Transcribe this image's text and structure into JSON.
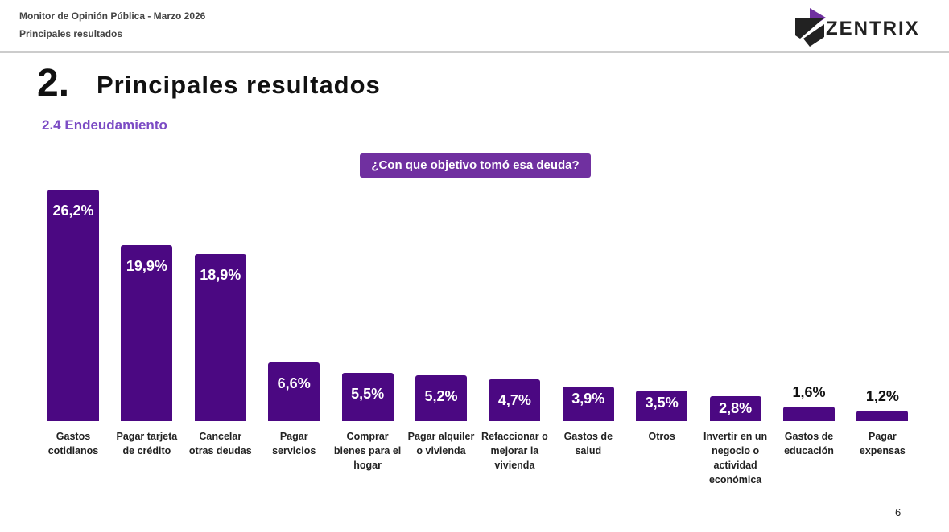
{
  "header": {
    "report": "Monitor de Opinión Pública - Marzo 2026",
    "section": "Principales resultados",
    "logo": "ZENTRIX"
  },
  "heading": {
    "number": "2.",
    "title": "Principales resultados",
    "subtitle": "2.4 Endeudamiento"
  },
  "page_number": 6,
  "chart_data": {
    "type": "bar",
    "title": "¿Con que objetivo tomó esa deuda?",
    "categories": [
      "Gastos cotidianos",
      "Pagar tarjeta de crédito",
      "Cancelar otras deudas",
      "Pagar servicios",
      "Comprar bienes para el hogar",
      "Pagar alquiler o vivienda",
      "Refaccionar o mejorar la vivienda",
      "Gastos de salud",
      "Otros",
      "Invertir en un negocio o actividad económica",
      "Gastos de educación",
      "Pagar expensas"
    ],
    "values": [
      26.2,
      19.9,
      18.9,
      6.6,
      5.5,
      5.2,
      4.7,
      3.9,
      3.5,
      2.8,
      1.6,
      1.2
    ],
    "value_labels": [
      "26,2%",
      "19,9%",
      "18,9%",
      "6,6%",
      "5,5%",
      "5,2%",
      "4,7%",
      "3,9%",
      "3,5%",
      "2,8%",
      "1,6%",
      "1,2%"
    ],
    "color": "#4b0882"
  }
}
